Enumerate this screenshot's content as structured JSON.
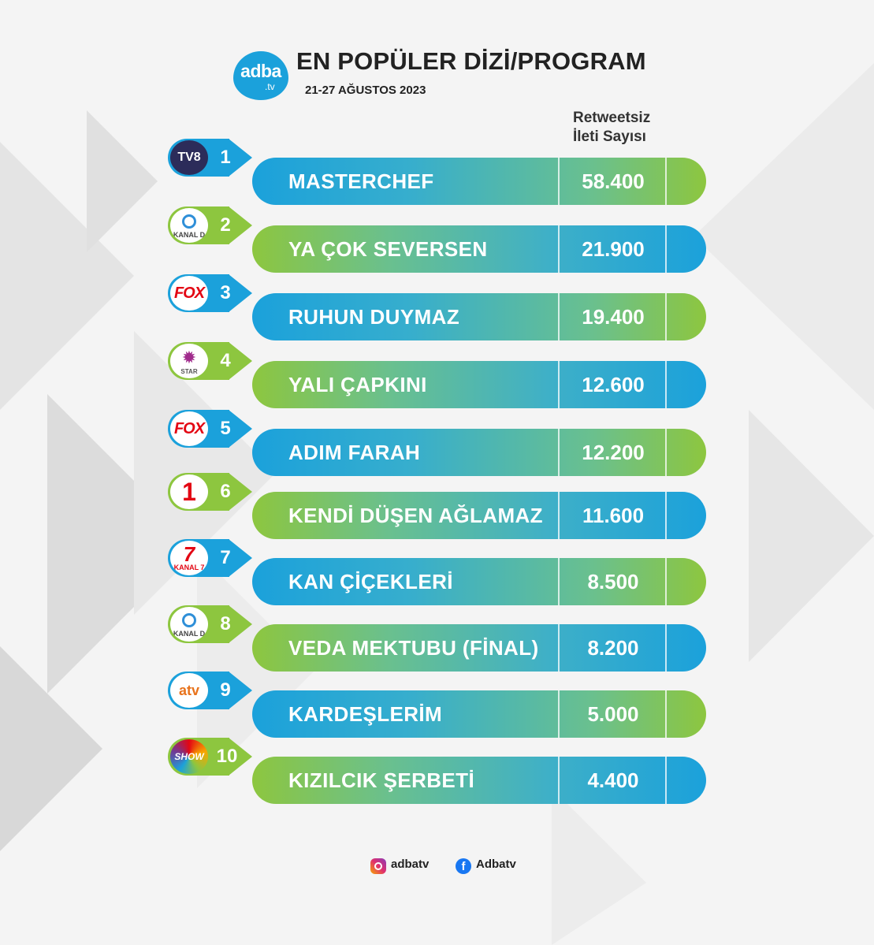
{
  "header": {
    "logo_main": "adba",
    "logo_sub": ".tv",
    "title": "EN POPÜLER DİZİ/PROGRAM",
    "date": "21-27 AĞUSTOS 2023",
    "column_header_line1": "Retweetsiz",
    "column_header_line2": "İleti Sayısı"
  },
  "chart_data": {
    "type": "table",
    "title": "EN POPÜLER DİZİ/PROGRAM",
    "subtitle": "21-27 AĞUSTOS 2023",
    "columns": [
      "Retweetsiz İleti Sayısı"
    ],
    "rows": [
      {
        "rank": "1",
        "channel": "TV8",
        "channel_label": "TV8",
        "name": "MASTERCHEF",
        "value": "58.400",
        "style": "blue"
      },
      {
        "rank": "2",
        "channel": "Kanal D",
        "channel_label": "KANAL D",
        "name": "YA ÇOK SEVERSEN",
        "value": "21.900",
        "style": "green"
      },
      {
        "rank": "3",
        "channel": "FOX",
        "channel_label": "FOX",
        "name": "RUHUN DUYMAZ",
        "value": "19.400",
        "style": "blue"
      },
      {
        "rank": "4",
        "channel": "Star",
        "channel_label": "STAR",
        "name": "YALI ÇAPKINI",
        "value": "12.600",
        "style": "green"
      },
      {
        "rank": "5",
        "channel": "FOX",
        "channel_label": "FOX",
        "name": "ADIM FARAH",
        "value": "12.200",
        "style": "blue"
      },
      {
        "rank": "6",
        "channel": "Kanal 1",
        "channel_label": "1",
        "name": "KENDİ DÜŞEN AĞLAMAZ",
        "value": "11.600",
        "style": "green"
      },
      {
        "rank": "7",
        "channel": "Kanal 7",
        "channel_label": "KANAL 7",
        "name": "KAN ÇİÇEKLERİ",
        "value": "8.500",
        "style": "blue"
      },
      {
        "rank": "8",
        "channel": "Kanal D",
        "channel_label": "KANAL D",
        "name": "VEDA MEKTUBU (FİNAL)",
        "value": "8.200",
        "style": "green"
      },
      {
        "rank": "9",
        "channel": "atv",
        "channel_label": "atv",
        "name": "KARDEŞLERİM",
        "value": "5.000",
        "style": "blue"
      },
      {
        "rank": "10",
        "channel": "Show",
        "channel_label": "SHOW",
        "name": "KIZILCIK ŞERBETİ",
        "value": "4.400",
        "style": "green"
      }
    ]
  },
  "footer": {
    "instagram_icon": "instagram-icon",
    "instagram_handle": "adbatv",
    "facebook_icon": "facebook-icon",
    "facebook_handle": "Adbatv"
  },
  "colors": {
    "blue": "#1ba1db",
    "green": "#8dc63f"
  }
}
